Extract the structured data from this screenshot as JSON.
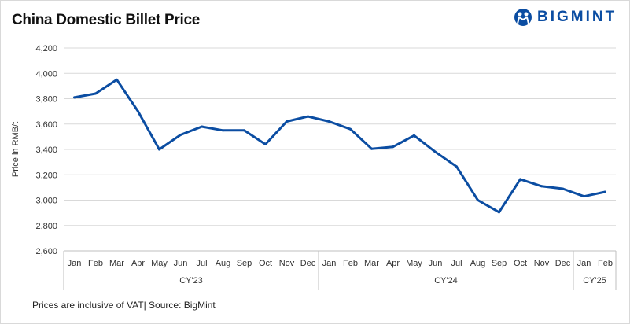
{
  "title": "China Domestic Billet Price",
  "logo": {
    "text": "BIGMINT",
    "color": "#0b4da2"
  },
  "footnote": "Prices are inclusive of VAT| Source: BigMint",
  "chart_data": {
    "type": "line",
    "title": "China Domestic Billet Price",
    "ylabel": "Price in RMB/t",
    "xlabel": "",
    "ylim": [
      2600,
      4200
    ],
    "yticks": [
      2600,
      2800,
      3000,
      3200,
      3400,
      3600,
      3800,
      4000,
      4200
    ],
    "ytick_labels": [
      "2,600",
      "2,800",
      "3,000",
      "3,200",
      "3,400",
      "3,600",
      "3,800",
      "4,000",
      "4,200"
    ],
    "grid": true,
    "categories": [
      "Jan",
      "Feb",
      "Mar",
      "Apr",
      "May",
      "Jun",
      "Jul",
      "Aug",
      "Sep",
      "Oct",
      "Nov",
      "Dec",
      "Jan",
      "Feb",
      "Mar",
      "Apr",
      "May",
      "Jun",
      "Jul",
      "Aug",
      "Sep",
      "Oct",
      "Nov",
      "Dec",
      "Jan",
      "Feb"
    ],
    "groups": [
      {
        "label": "CY'23",
        "count": 12
      },
      {
        "label": "CY'24",
        "count": 12
      },
      {
        "label": "CY'25",
        "count": 2
      }
    ],
    "series": [
      {
        "name": "Price",
        "color": "#0b4da2",
        "values": [
          3810,
          3840,
          3950,
          3700,
          3400,
          3515,
          3580,
          3550,
          3550,
          3440,
          3620,
          3660,
          3620,
          3560,
          3405,
          3420,
          3510,
          3380,
          3265,
          3000,
          2905,
          3165,
          3110,
          3090,
          3030,
          3065
        ]
      }
    ]
  }
}
